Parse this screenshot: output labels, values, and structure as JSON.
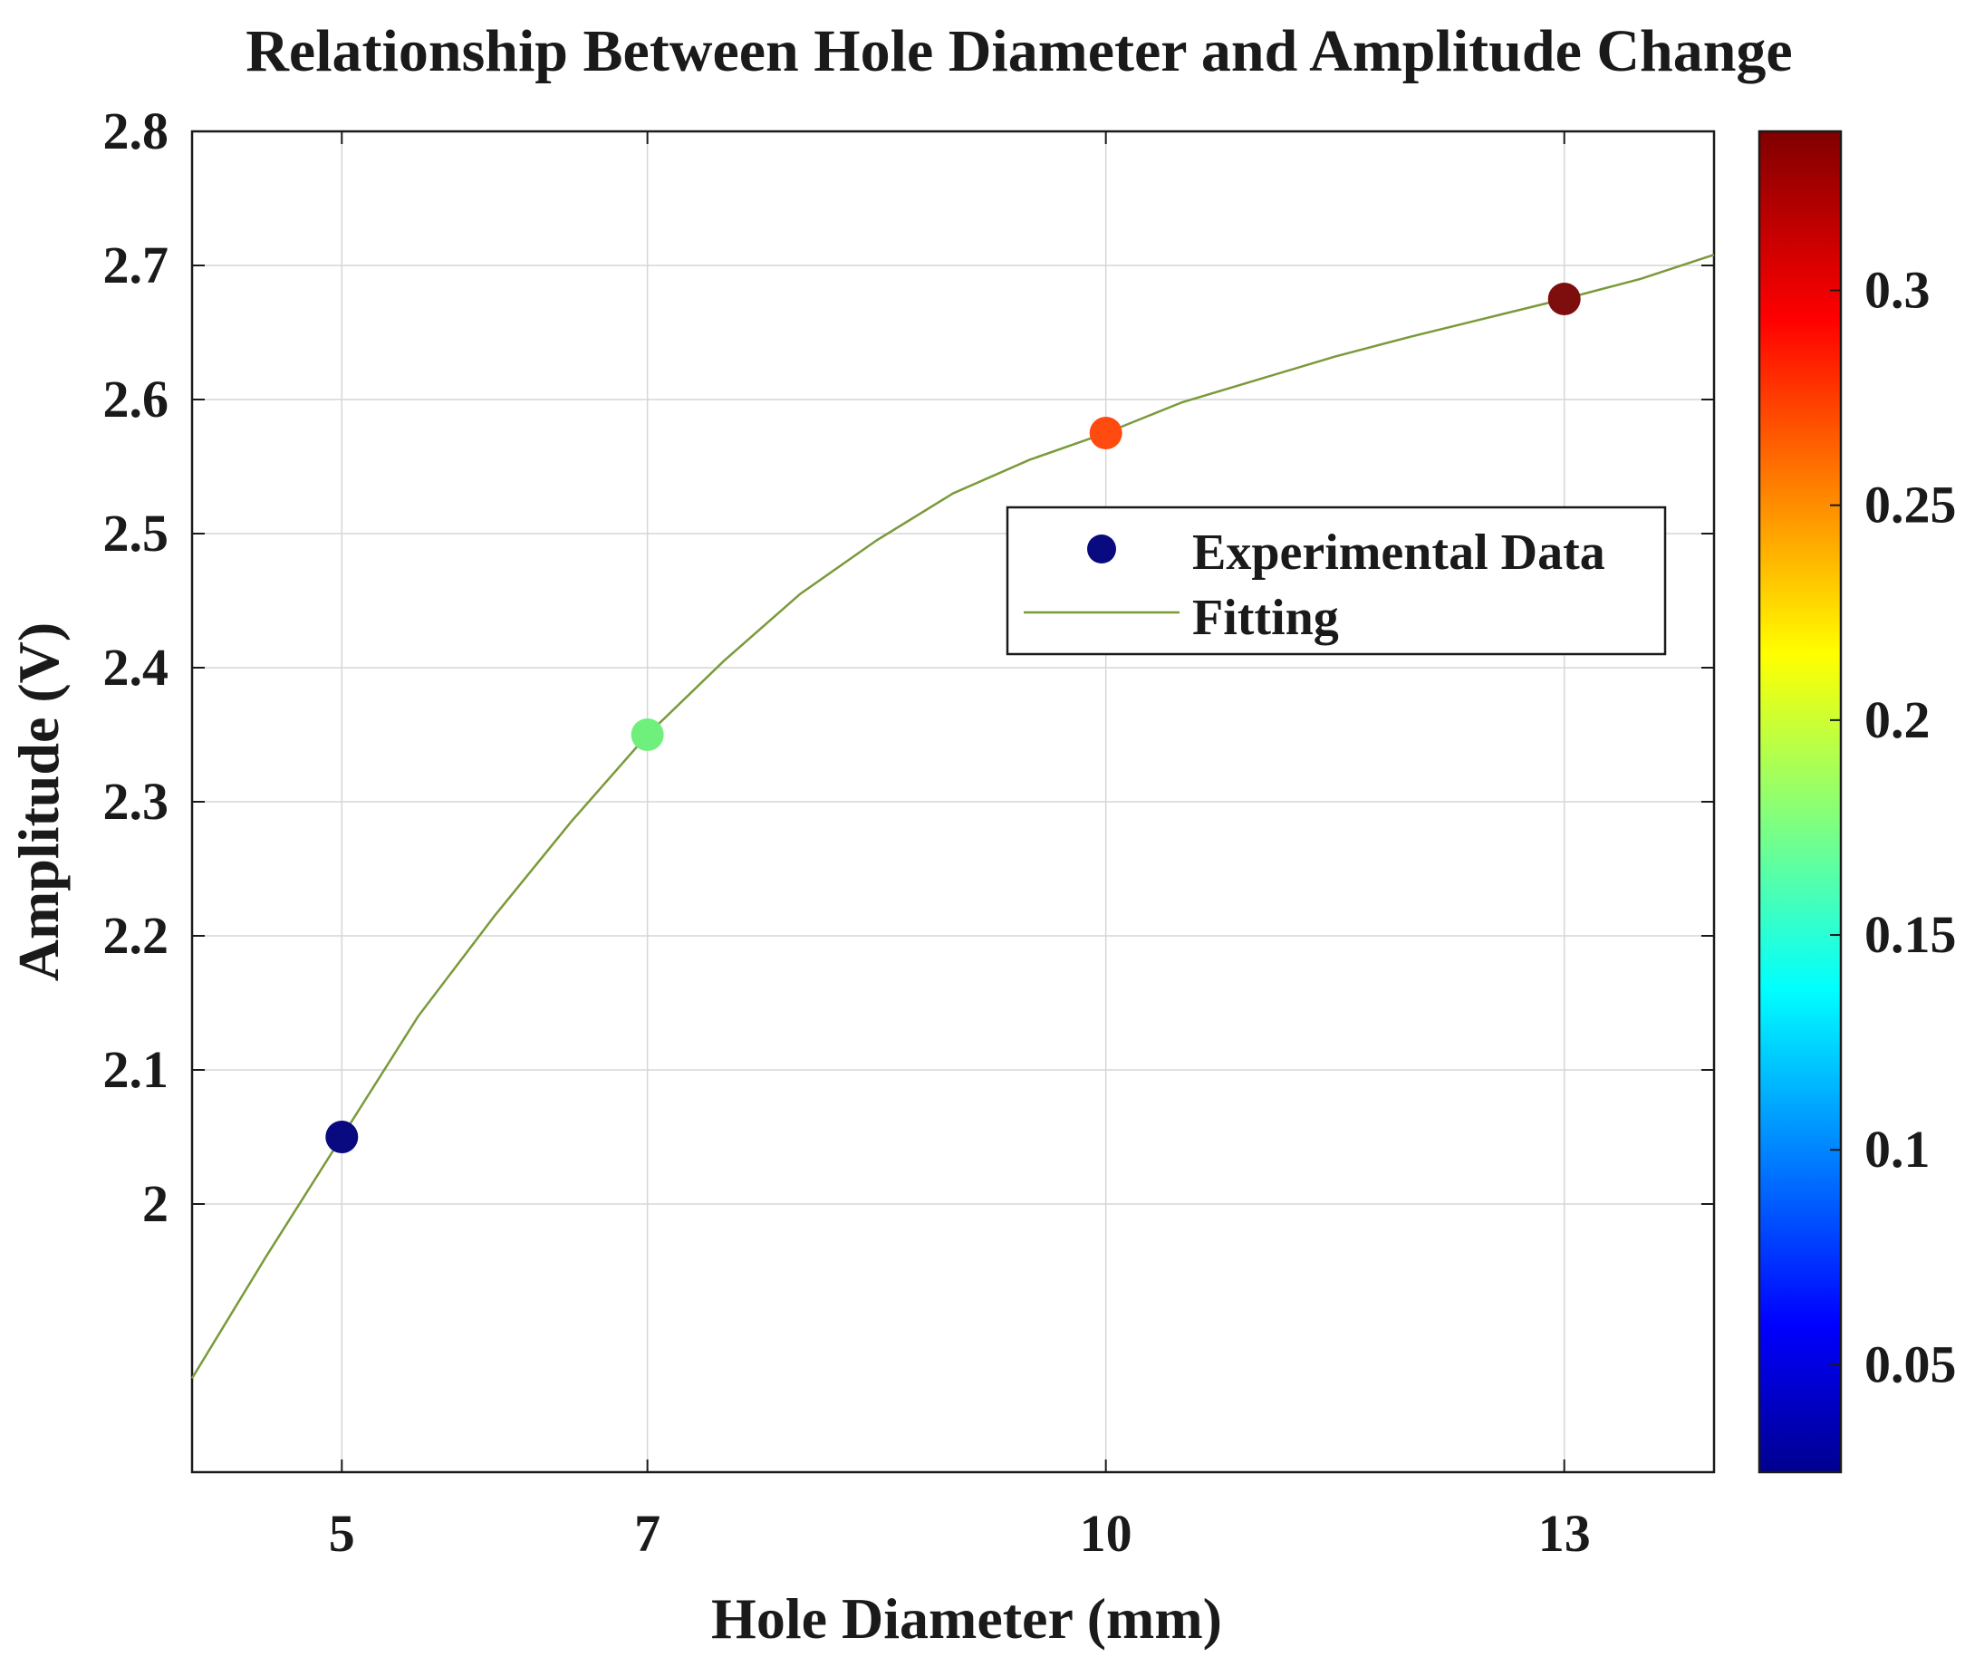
{
  "chart_data": {
    "type": "scatter",
    "title": "Relationship Between Hole Diameter and Amplitude Change",
    "xlabel": "Hole Diameter (mm)",
    "ylabel": "Amplitude (V)",
    "xlim": [
      4.02,
      13.98
    ],
    "ylim": [
      1.8,
      2.8
    ],
    "x_ticks": [
      5,
      7,
      10,
      13
    ],
    "y_ticks": [
      2,
      2.1,
      2.2,
      2.3,
      2.4,
      2.5,
      2.6,
      2.7,
      2.8
    ],
    "grid": true,
    "series": [
      {
        "name": "Experimental Data",
        "type": "scatter",
        "x": [
          5,
          7,
          10,
          13
        ],
        "y": [
          2.05,
          2.35,
          2.575,
          2.675
        ],
        "color_values": [
          0.025,
          0.175,
          0.285,
          0.335
        ],
        "colors": [
          "#0a0a80",
          "#6ff07c",
          "#ff4a10",
          "#7e0d0d"
        ]
      },
      {
        "name": "Fitting",
        "type": "line",
        "color": "#7a9a3a",
        "x": [
          4.02,
          4.5,
          5,
          5.5,
          6,
          6.5,
          7,
          7.5,
          8,
          8.5,
          9,
          9.5,
          10,
          10.5,
          11,
          11.5,
          12,
          12.5,
          13,
          13.5,
          13.98
        ],
        "y": [
          1.87,
          1.96,
          2.05,
          2.14,
          2.215,
          2.285,
          2.35,
          2.405,
          2.455,
          2.495,
          2.53,
          2.555,
          2.575,
          2.598,
          2.615,
          2.632,
          2.647,
          2.661,
          2.675,
          2.69,
          2.708
        ]
      }
    ],
    "legend": {
      "position": "center-right",
      "entries": [
        "Experimental Data",
        "Fitting"
      ]
    },
    "colorbar": {
      "colormap": "jet",
      "range": [
        0.025,
        0.337
      ],
      "ticks": [
        0.05,
        0.1,
        0.15,
        0.2,
        0.25,
        0.3
      ],
      "tick_labels": [
        "0.05",
        "0.1",
        "0.15",
        "0.2",
        "0.25",
        "0.3"
      ]
    }
  }
}
